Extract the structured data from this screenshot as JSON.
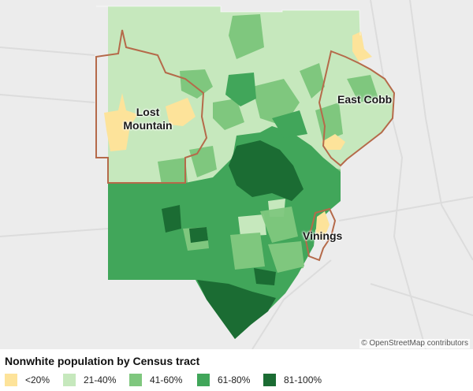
{
  "map": {
    "labels": {
      "lost_mountain_line1": "Lost",
      "lost_mountain_line2": "Mountain",
      "east_cobb": "East Cobb",
      "vinings": "Vinings"
    },
    "attribution": "© OpenStreetMap contributors"
  },
  "legend": {
    "title": "Nonwhite population by Census tract",
    "items": [
      {
        "label": "<20%",
        "color": "#fde39a"
      },
      {
        "label": "21-40%",
        "color": "#c6e8bd"
      },
      {
        "label": "41-60%",
        "color": "#7fc77e"
      },
      {
        "label": "61-80%",
        "color": "#41a65a"
      },
      {
        "label": "81-100%",
        "color": "#1b6c33"
      }
    ]
  },
  "colors": {
    "boundary": "#b56a4a",
    "background": "#ececec"
  }
}
